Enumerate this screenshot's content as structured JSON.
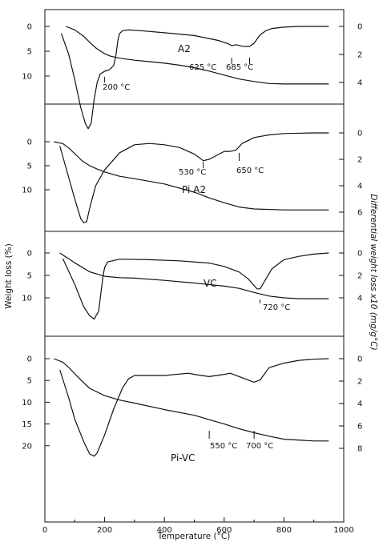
{
  "chart_data": {
    "type": "line",
    "xlabel": "Temperature (°C)",
    "ylabel_left": "Weight loss (%)",
    "ylabel_right": "Differential weight loss x10 (mg/g°C)",
    "xlim": [
      0,
      1000
    ],
    "xticks": [
      "0",
      "200",
      "400",
      "600",
      "800",
      "1000"
    ],
    "grid": false,
    "panels": [
      {
        "label": "A2",
        "left_ticks": [
          "0",
          "5",
          "10"
        ],
        "right_ticks": [
          "0",
          "2",
          "4"
        ],
        "left_ylim": [
          0,
          13.3
        ],
        "right_ylim": [
          0,
          5.3
        ],
        "series": [
          {
            "kind": "tg",
            "x": [
              70,
              100,
              130,
              150,
              170,
              200,
              220,
              250,
              300,
              350,
              400,
              450,
              500,
              550,
              600,
              650,
              700,
              750,
              800,
              850,
              900,
              950
            ],
            "y": [
              0,
              0.7,
              2.0,
              3.2,
              4.3,
              5.5,
              6.0,
              6.4,
              6.8,
              7.1,
              7.4,
              7.8,
              8.3,
              9.0,
              9.8,
              10.6,
              11.1,
              11.5,
              11.6,
              11.6,
              11.6,
              11.6
            ]
          },
          {
            "kind": "dtg",
            "x": [
              55,
              80,
              100,
              120,
              135,
              145,
              155,
              165,
              175,
              185,
              200,
              215,
              230,
              238,
              245,
              250,
              260,
              280,
              320,
              400,
              500,
              580,
              615,
              625,
              640,
              660,
              675,
              685,
              700,
              720,
              740,
              760,
              800,
              850,
              900,
              950
            ],
            "y": [
              0.5,
              2.0,
              3.8,
              5.8,
              6.9,
              7.3,
              6.9,
              5.2,
              4.0,
              3.4,
              3.2,
              3.1,
              2.8,
              2.0,
              0.9,
              0.5,
              0.3,
              0.25,
              0.3,
              0.45,
              0.65,
              1.0,
              1.25,
              1.38,
              1.3,
              1.42,
              1.43,
              1.43,
              1.2,
              0.6,
              0.3,
              0.15,
              0.05,
              0.0,
              0.0,
              0.0
            ]
          }
        ],
        "annotations": [
          "200 °C",
          "625 °C",
          "685 °C"
        ]
      },
      {
        "label": "Pi A2",
        "left_ticks": [
          "0",
          "5",
          "10"
        ],
        "right_ticks": [
          "0",
          "2",
          "4",
          "6"
        ],
        "left_ylim": [
          0,
          16
        ],
        "right_ylim": [
          0,
          7
        ],
        "series": [
          {
            "kind": "tg",
            "x": [
              30,
              60,
              80,
              100,
              125,
              150,
              175,
              200,
              250,
              300,
              400,
              500,
              550,
              600,
              650,
              700,
              800,
              900,
              950
            ],
            "y": [
              0,
              0.4,
              1.3,
              2.5,
              4.0,
              5.0,
              5.7,
              6.3,
              7.2,
              7.7,
              8.8,
              10.5,
              11.7,
              12.7,
              13.6,
              14.0,
              14.2,
              14.2,
              14.2
            ]
          },
          {
            "kind": "dtg",
            "x": [
              50,
              75,
              100,
              120,
              130,
              140,
              150,
              170,
              200,
              250,
              300,
              350,
              400,
              450,
              500,
              530,
              550,
              600,
              620,
              640,
              660,
              700,
              750,
              800,
              900,
              950
            ],
            "y": [
              1.0,
              3.0,
              5.0,
              6.5,
              6.8,
              6.7,
              5.7,
              4.0,
              2.8,
              1.5,
              0.9,
              0.8,
              0.9,
              1.1,
              1.6,
              2.1,
              2.0,
              1.4,
              1.4,
              1.3,
              0.8,
              0.35,
              0.15,
              0.05,
              0.0,
              0.0
            ]
          }
        ],
        "annotations": [
          "530 °C",
          "650 °C"
        ]
      },
      {
        "label": "VC",
        "left_ticks": [
          "0",
          "5",
          "10"
        ],
        "right_ticks": [
          "0",
          "2",
          "4"
        ],
        "left_ylim": [
          0,
          11.5
        ],
        "right_ylim": [
          0,
          5
        ],
        "series": [
          {
            "kind": "tg",
            "x": [
              50,
              100,
              150,
              200,
              250,
              300,
              400,
              500,
              600,
              650,
              700,
              750,
              800,
              850,
              900,
              950
            ],
            "y": [
              0,
              2.2,
              4.2,
              5.2,
              5.5,
              5.6,
              6.1,
              6.7,
              7.4,
              7.9,
              8.8,
              9.6,
              10.0,
              10.2,
              10.2,
              10.2
            ]
          },
          {
            "kind": "dtg",
            "x": [
              60,
              100,
              130,
              150,
              165,
              180,
              195,
              200,
              210,
              250,
              350,
              450,
              550,
              600,
              650,
              680,
              700,
              710,
              720,
              740,
              760,
              800,
              850,
              900,
              950
            ],
            "y": [
              0.5,
              2.8,
              4.8,
              5.6,
              5.9,
              5.2,
              2.0,
              1.3,
              0.8,
              0.55,
              0.6,
              0.7,
              0.9,
              1.2,
              1.7,
              2.3,
              2.9,
              3.2,
              3.2,
              2.3,
              1.4,
              0.6,
              0.3,
              0.1,
              0.0
            ]
          }
        ],
        "annotations": [
          "720 °C"
        ]
      },
      {
        "label": "Pi-VC",
        "left_ticks": [
          "0",
          "5",
          "10",
          "15",
          "20"
        ],
        "right_ticks": [
          "0",
          "2",
          "4",
          "6",
          "8"
        ],
        "left_ylim": [
          0,
          20
        ],
        "right_ylim": [
          0,
          10
        ],
        "series": [
          {
            "kind": "tg",
            "x": [
              30,
              60,
              80,
              100,
              125,
              150,
              200,
              250,
              300,
              400,
              500,
              550,
              600,
              650,
              700,
              750,
              800,
              900,
              950
            ],
            "y": [
              0,
              0.8,
              2.0,
              3.5,
              5.2,
              6.8,
              8.5,
              9.5,
              10.2,
              11.7,
              13.0,
              14.0,
              15.0,
              16.1,
              17.0,
              17.8,
              18.5,
              18.9,
              18.9
            ]
          },
          {
            "kind": "dtg",
            "x": [
              50,
              80,
              100,
              130,
              150,
              165,
              175,
              200,
              230,
              260,
              280,
              300,
              400,
              480,
              500,
              550,
              600,
              620,
              650,
              700,
              720,
              750,
              800,
              850,
              900,
              950
            ],
            "y": [
              1.0,
              3.5,
              5.4,
              7.4,
              8.5,
              8.7,
              8.4,
              6.8,
              4.5,
              2.6,
              1.8,
              1.5,
              1.5,
              1.3,
              1.4,
              1.6,
              1.4,
              1.3,
              1.6,
              2.1,
              1.9,
              0.8,
              0.4,
              0.15,
              0.05,
              0.0
            ]
          }
        ],
        "annotations": [
          "550 °C",
          "700 °C"
        ]
      }
    ]
  }
}
